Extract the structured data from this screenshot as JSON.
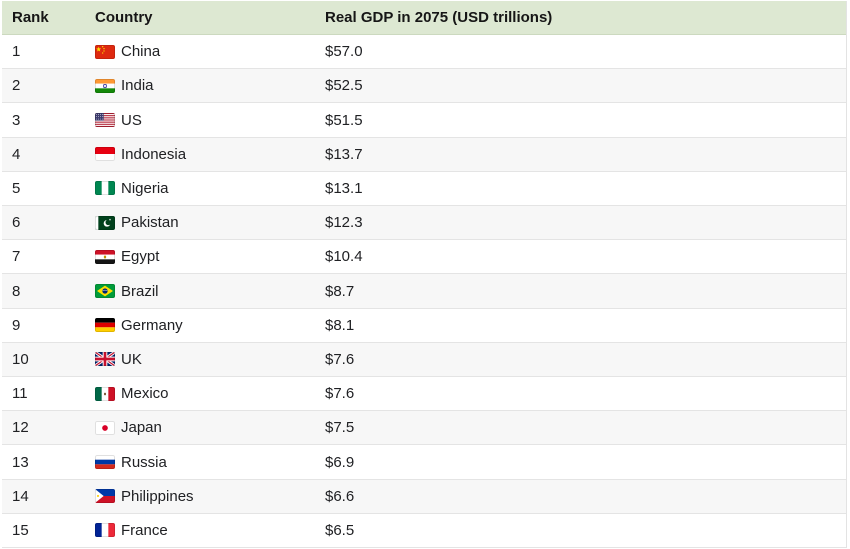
{
  "header": {
    "rank": "Rank",
    "country": "Country",
    "value": "Real GDP in 2075 (USD trillions)"
  },
  "rows": [
    {
      "rank": "1",
      "flag": "china",
      "country": "China",
      "value": "$57.0"
    },
    {
      "rank": "2",
      "flag": "india",
      "country": "India",
      "value": "$52.5"
    },
    {
      "rank": "3",
      "flag": "us",
      "country": "US",
      "value": "$51.5"
    },
    {
      "rank": "4",
      "flag": "indonesia",
      "country": "Indonesia",
      "value": "$13.7"
    },
    {
      "rank": "5",
      "flag": "nigeria",
      "country": "Nigeria",
      "value": "$13.1"
    },
    {
      "rank": "6",
      "flag": "pakistan",
      "country": "Pakistan",
      "value": "$12.3"
    },
    {
      "rank": "7",
      "flag": "egypt",
      "country": "Egypt",
      "value": "$10.4"
    },
    {
      "rank": "8",
      "flag": "brazil",
      "country": "Brazil",
      "value": "$8.7"
    },
    {
      "rank": "9",
      "flag": "germany",
      "country": "Germany",
      "value": "$8.1"
    },
    {
      "rank": "10",
      "flag": "uk",
      "country": "UK",
      "value": "$7.6"
    },
    {
      "rank": "11",
      "flag": "mexico",
      "country": "Mexico",
      "value": "$7.6"
    },
    {
      "rank": "12",
      "flag": "japan",
      "country": "Japan",
      "value": "$7.5"
    },
    {
      "rank": "13",
      "flag": "russia",
      "country": "Russia",
      "value": "$6.9"
    },
    {
      "rank": "14",
      "flag": "philippines",
      "country": "Philippines",
      "value": "$6.6"
    },
    {
      "rank": "15",
      "flag": "france",
      "country": "France",
      "value": "$6.5"
    }
  ],
  "colors": {
    "header_bg": "#dde8d2",
    "stripe_bg": "#f7f7f7",
    "row_border": "#e4e4e4",
    "text": "#202124"
  },
  "chart_data": {
    "type": "table",
    "title": "Real GDP in 2075 (USD trillions)",
    "columns": [
      "Rank",
      "Country",
      "Real GDP in 2075 (USD trillions)"
    ],
    "categories": [
      "China",
      "India",
      "US",
      "Indonesia",
      "Nigeria",
      "Pakistan",
      "Egypt",
      "Brazil",
      "Germany",
      "UK",
      "Mexico",
      "Japan",
      "Russia",
      "Philippines",
      "France"
    ],
    "values": [
      57.0,
      52.5,
      51.5,
      13.7,
      13.1,
      12.3,
      10.4,
      8.7,
      8.1,
      7.6,
      7.6,
      7.5,
      6.9,
      6.6,
      6.5
    ],
    "units": "USD trillions",
    "layout": "ranked table, striped rows, green header"
  }
}
